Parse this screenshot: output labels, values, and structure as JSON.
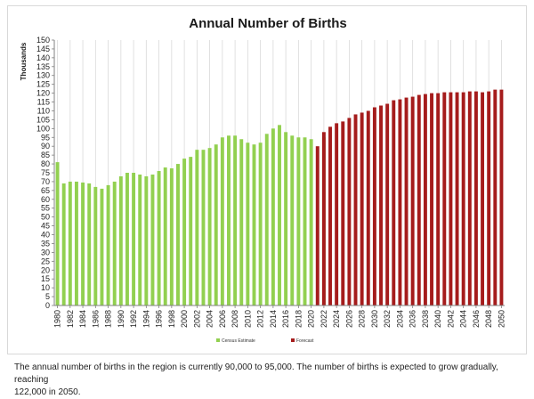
{
  "chart_data": {
    "type": "bar",
    "title": "Annual Number of Births",
    "ylabel": "Thousands",
    "xlabel": "",
    "ylim": [
      0,
      150
    ],
    "ytick_step": 5,
    "grid": "vertical gridlines at each labeled year",
    "legend_placement": "bottom-center",
    "x": [
      1980,
      1981,
      1982,
      1983,
      1984,
      1985,
      1986,
      1987,
      1988,
      1989,
      1990,
      1991,
      1992,
      1993,
      1994,
      1995,
      1996,
      1997,
      1998,
      1999,
      2000,
      2001,
      2002,
      2003,
      2004,
      2005,
      2006,
      2007,
      2008,
      2009,
      2010,
      2011,
      2012,
      2013,
      2014,
      2015,
      2016,
      2017,
      2018,
      2019,
      2020,
      2021,
      2022,
      2023,
      2024,
      2025,
      2026,
      2027,
      2028,
      2029,
      2030,
      2031,
      2032,
      2033,
      2034,
      2035,
      2036,
      2037,
      2038,
      2039,
      2040,
      2041,
      2042,
      2043,
      2044,
      2045,
      2046,
      2047,
      2048,
      2049,
      2050
    ],
    "x_tick_labels": [
      "1980",
      "1982",
      "1984",
      "1986",
      "1988",
      "1990",
      "1992",
      "1994",
      "1996",
      "1998",
      "2000",
      "2002",
      "2004",
      "2006",
      "2008",
      "2010",
      "2012",
      "2014",
      "2016",
      "2018",
      "2020",
      "2022",
      "2024",
      "2026",
      "2028",
      "2030",
      "2032",
      "2034",
      "2036",
      "2038",
      "2040",
      "2042",
      "2044",
      "2046",
      "2048",
      "2050"
    ],
    "series": [
      {
        "name": "Census Estimate",
        "color": "#92d050",
        "x": [
          1980,
          1981,
          1982,
          1983,
          1984,
          1985,
          1986,
          1987,
          1988,
          1989,
          1990,
          1991,
          1992,
          1993,
          1994,
          1995,
          1996,
          1997,
          1998,
          1999,
          2000,
          2001,
          2002,
          2003,
          2004,
          2005,
          2006,
          2007,
          2008,
          2009,
          2010,
          2011,
          2012,
          2013,
          2014,
          2015,
          2016,
          2017,
          2018,
          2019,
          2020,
          2022
        ],
        "values": [
          81,
          69,
          70,
          70,
          69.5,
          69,
          67,
          66,
          68,
          70,
          73,
          75,
          75,
          74,
          73,
          74,
          76,
          78,
          77.5,
          80,
          83,
          84,
          88,
          88,
          89,
          91,
          95,
          96,
          96,
          94,
          92,
          91,
          92,
          97,
          100,
          102,
          98,
          96,
          95,
          95,
          94,
          95
        ]
      },
      {
        "name": "Forecast",
        "color": "#a51c1c",
        "x": [
          2021,
          2022,
          2023,
          2024,
          2025,
          2026,
          2027,
          2028,
          2029,
          2030,
          2031,
          2032,
          2033,
          2034,
          2035,
          2036,
          2037,
          2038,
          2039,
          2040,
          2041,
          2042,
          2043,
          2044,
          2045,
          2046,
          2047,
          2048,
          2049,
          2050
        ],
        "values": [
          90,
          98,
          101,
          103,
          104,
          106,
          108,
          109,
          110,
          112,
          113,
          114,
          116,
          116.5,
          117.5,
          118,
          119,
          119.5,
          120,
          120,
          120.5,
          120.5,
          120.5,
          120.5,
          121,
          121,
          120.5,
          121,
          122,
          122
        ]
      }
    ]
  },
  "caption": {
    "line1": "The annual number of births in the region is currently 90,000 to 95,000. The number of births is expected to grow gradually, reaching",
    "line2": "122,000 in 2050."
  }
}
